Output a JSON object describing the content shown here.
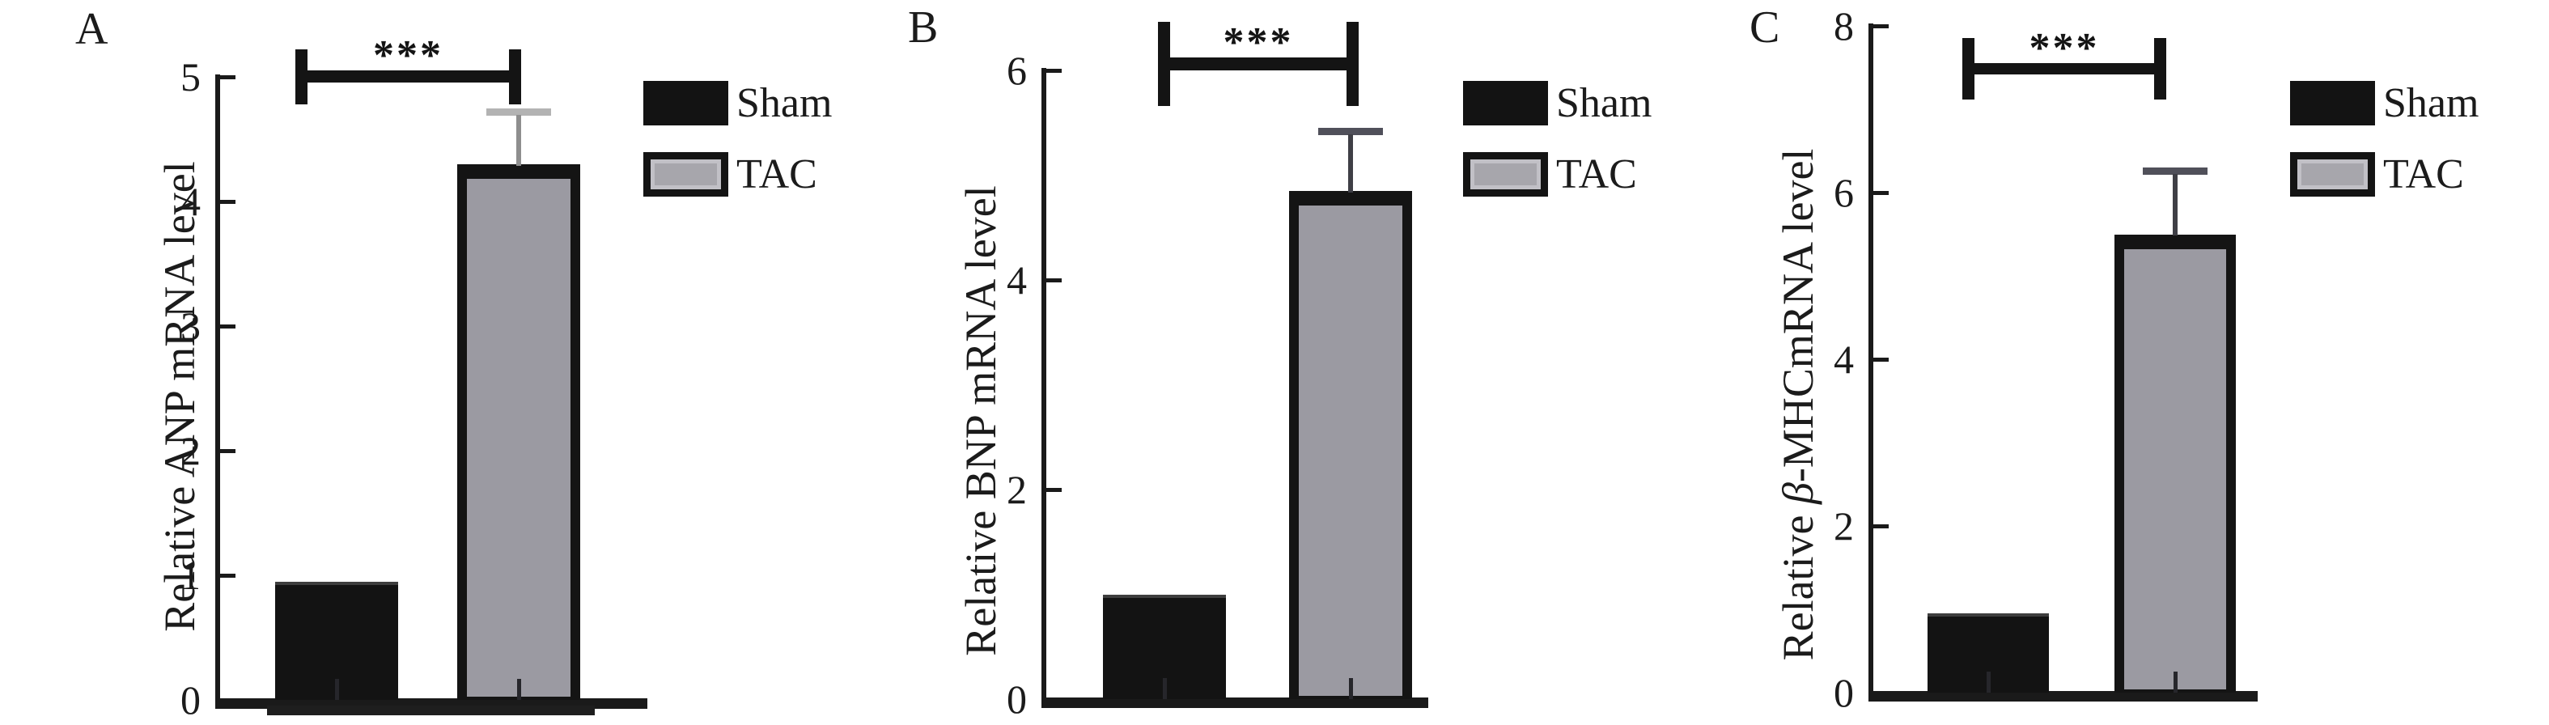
{
  "figure": {
    "background": "#ffffff",
    "description_note": "Three-panel bar figure comparing Sham vs TAC groups"
  },
  "colors": {
    "axis": "#1a1a1a",
    "bar_black": "#131313",
    "bar_gray_fill": "#9b9aa2",
    "bar_border": "#141414",
    "legend_tac_fill": "#a7a6ac",
    "error_light_stem": "#8e8e8e",
    "error_light_cap": "#b3b3b3",
    "error_dark_stem": "#3f3f46",
    "error_dark_cap": "#50505a",
    "text": "#1b1b1b"
  },
  "chart_data": [
    {
      "type": "bar",
      "panel": "A",
      "categories": [
        "Sham",
        "TAC"
      ],
      "values": [
        0.95,
        4.3
      ],
      "errors": [
        0,
        0.45
      ],
      "error_style": "light",
      "ylabel": "Relative ANP mRNA level",
      "xlabel": "",
      "ylim": [
        0,
        5
      ],
      "yticks": [
        0,
        1,
        2,
        3,
        4,
        5
      ],
      "grid": "off",
      "significance": "***",
      "legend": [
        "Sham",
        "TAC"
      ],
      "legend_position": "right",
      "bar_colors": [
        "#131313",
        "#9b9aa2"
      ]
    },
    {
      "type": "bar",
      "panel": "B",
      "categories": [
        "Sham",
        "TAC"
      ],
      "values": [
        1.0,
        4.85
      ],
      "errors": [
        0,
        0.6
      ],
      "error_style": "dark",
      "ylabel": "Relative BNP mRNA level",
      "xlabel": "",
      "ylim": [
        0,
        6
      ],
      "yticks": [
        0,
        2,
        4,
        6
      ],
      "grid": "off",
      "significance": "***",
      "legend": [
        "Sham",
        "TAC"
      ],
      "legend_position": "right",
      "bar_colors": [
        "#131313",
        "#9b9aa2"
      ]
    },
    {
      "type": "bar",
      "panel": "C",
      "categories": [
        "Sham",
        "TAC"
      ],
      "values": [
        0.95,
        5.5
      ],
      "errors": [
        0,
        0.8
      ],
      "error_style": "dark",
      "ylabel": "Relative β-MHCmRNA level",
      "xlabel": "",
      "ylim": [
        0,
        8
      ],
      "yticks": [
        0,
        2,
        4,
        6,
        8
      ],
      "grid": "off",
      "significance": "***",
      "legend": [
        "Sham",
        "TAC"
      ],
      "legend_position": "right",
      "bar_colors": [
        "#131313",
        "#9b9aa2"
      ]
    }
  ]
}
